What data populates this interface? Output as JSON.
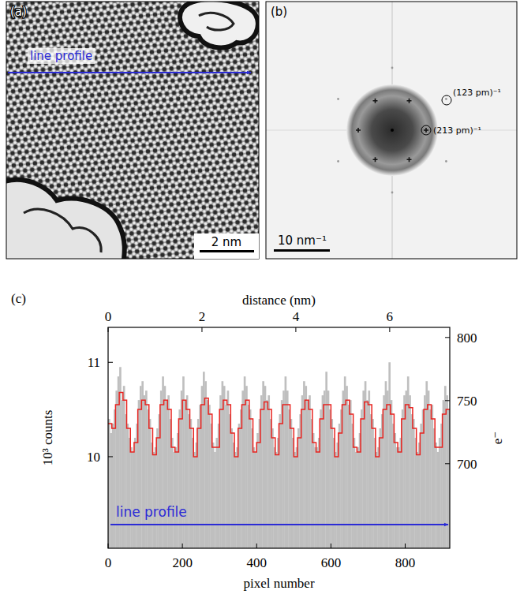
{
  "panel_a": {
    "label": "(a)",
    "annotation": "line profile",
    "scale_bar_label": "2 nm"
  },
  "panel_b": {
    "label": "(b)",
    "ring_labels": [
      "(123 pm)⁻¹",
      "(213 pm)⁻¹"
    ],
    "scale_bar_label": "10 nm⁻¹"
  },
  "chart_data": {
    "type": "bar",
    "panel_label": "(c)",
    "annotation": "line profile",
    "x_label": "pixel number",
    "x2_label": "distance (nm)",
    "y_label": "10³ counts",
    "y2_label": "e⁻",
    "xlim": [
      0,
      920
    ],
    "xticks": [
      0,
      200,
      400,
      600,
      800
    ],
    "x2lim": [
      0,
      7.28
    ],
    "x2ticks": [
      0,
      2,
      4,
      6
    ],
    "ylim": [
      9.03,
      11.37
    ],
    "yticks": [
      10,
      11
    ],
    "y2lim": [
      633,
      808
    ],
    "y2ticks": [
      700,
      750,
      800
    ],
    "grid": false,
    "series": [
      {
        "type": "bar",
        "color": "#bfbfbf",
        "x": [
          0,
          5,
          10,
          15,
          20,
          25,
          30,
          35,
          40,
          45,
          50,
          55,
          60,
          65,
          70,
          75,
          80,
          85,
          90,
          95,
          100,
          105,
          110,
          115,
          120,
          125,
          130,
          135,
          140,
          145,
          150,
          155,
          160,
          165,
          170,
          175,
          180,
          185,
          190,
          195,
          200,
          205,
          210,
          215,
          220,
          225,
          230,
          235,
          240,
          245,
          250,
          255,
          260,
          265,
          270,
          275,
          280,
          285,
          290,
          295,
          300,
          305,
          310,
          315,
          320,
          325,
          330,
          335,
          340,
          345,
          350,
          355,
          360,
          365,
          370,
          375,
          380,
          385,
          390,
          395,
          400,
          405,
          410,
          415,
          420,
          425,
          430,
          435,
          440,
          445,
          450,
          455,
          460,
          465,
          470,
          475,
          480,
          485,
          490,
          495,
          500,
          505,
          510,
          515,
          520,
          525,
          530,
          535,
          540,
          545,
          550,
          555,
          560,
          565,
          570,
          575,
          580,
          585,
          590,
          595,
          600,
          605,
          610,
          615,
          620,
          625,
          630,
          635,
          640,
          645,
          650,
          655,
          660,
          665,
          670,
          675,
          680,
          685,
          690,
          695,
          700,
          705,
          710,
          715,
          720,
          725,
          730,
          735,
          740,
          745,
          750,
          755,
          760,
          765,
          770,
          775,
          780,
          785,
          790,
          795,
          800,
          805,
          810,
          815,
          820,
          825,
          830,
          835,
          840,
          845,
          850,
          855,
          860,
          865,
          870,
          875,
          880,
          885,
          890,
          895,
          900,
          905,
          910,
          915
        ],
        "values": [
          10.4,
          10.25,
          10.35,
          10.5,
          10.7,
          10.85,
          10.95,
          10.6,
          10.75,
          10.45,
          10.35,
          10.2,
          10.1,
          10.05,
          10.2,
          10.35,
          10.6,
          10.75,
          10.8,
          10.65,
          10.7,
          10.5,
          10.4,
          10.15,
          10.05,
          10.1,
          10.3,
          10.45,
          10.7,
          10.85,
          10.75,
          10.6,
          10.65,
          10.4,
          10.2,
          10.05,
          10.1,
          10.25,
          10.5,
          10.7,
          10.85,
          10.6,
          10.65,
          10.45,
          10.4,
          10.2,
          10.05,
          10.15,
          10.4,
          10.55,
          10.75,
          10.9,
          10.8,
          10.6,
          10.55,
          10.35,
          10.15,
          10.05,
          10.2,
          10.35,
          10.65,
          10.8,
          10.75,
          10.55,
          10.7,
          10.45,
          10.3,
          10.15,
          10.05,
          10.1,
          10.35,
          10.5,
          10.7,
          10.85,
          10.75,
          10.55,
          10.5,
          10.3,
          10.1,
          10.05,
          10.25,
          10.4,
          10.65,
          10.8,
          10.75,
          10.6,
          10.65,
          10.4,
          10.3,
          10.1,
          10.05,
          10.2,
          10.45,
          10.6,
          10.7,
          10.85,
          10.7,
          10.5,
          10.4,
          10.2,
          10.05,
          10.1,
          10.3,
          10.45,
          10.65,
          10.8,
          10.75,
          10.6,
          10.65,
          10.4,
          10.25,
          10.1,
          10.1,
          10.2,
          10.5,
          10.65,
          10.7,
          10.9,
          10.7,
          10.5,
          10.4,
          10.2,
          10.05,
          10.15,
          10.35,
          10.5,
          10.7,
          10.85,
          10.75,
          10.55,
          10.6,
          10.35,
          10.2,
          10.05,
          10.1,
          10.25,
          10.5,
          10.7,
          10.8,
          10.6,
          10.7,
          10.45,
          10.4,
          10.2,
          10.05,
          10.1,
          10.3,
          10.45,
          10.65,
          10.8,
          10.7,
          11.0,
          10.6,
          10.35,
          10.25,
          10.1,
          10.1,
          10.2,
          10.5,
          10.65,
          10.7,
          10.85,
          10.65,
          10.45,
          10.4,
          10.2,
          10.05,
          10.15,
          10.35,
          10.5,
          10.65,
          10.8,
          10.7,
          10.5,
          10.55,
          10.3,
          10.15,
          10.05,
          10.2,
          10.35,
          10.6,
          10.75,
          10.65,
          10.5
        ]
      },
      {
        "type": "line",
        "line_style": "steps",
        "color": "#e8231f",
        "x": [
          0,
          10,
          20,
          30,
          40,
          50,
          60,
          70,
          80,
          90,
          100,
          110,
          120,
          130,
          140,
          150,
          160,
          170,
          180,
          190,
          200,
          210,
          220,
          230,
          240,
          250,
          260,
          270,
          280,
          290,
          300,
          310,
          320,
          330,
          340,
          350,
          360,
          370,
          380,
          390,
          400,
          410,
          420,
          430,
          440,
          450,
          460,
          470,
          480,
          490,
          500,
          510,
          520,
          530,
          540,
          550,
          560,
          570,
          580,
          590,
          600,
          610,
          620,
          630,
          640,
          650,
          660,
          670,
          680,
          690,
          700,
          710,
          720,
          730,
          740,
          750,
          760,
          770,
          780,
          790,
          800,
          810,
          820,
          830,
          840,
          850,
          860,
          870,
          880,
          890,
          900,
          910
        ],
        "values": [
          10.35,
          10.3,
          10.55,
          10.68,
          10.6,
          10.3,
          10.05,
          10.15,
          10.5,
          10.6,
          10.55,
          10.3,
          10.02,
          10.2,
          10.55,
          10.6,
          10.5,
          10.1,
          10.05,
          10.4,
          10.6,
          10.5,
          10.3,
          10.0,
          10.3,
          10.55,
          10.62,
          10.45,
          10.1,
          10.1,
          10.5,
          10.6,
          10.55,
          10.25,
          10.0,
          10.3,
          10.55,
          10.6,
          10.4,
          10.05,
          10.15,
          10.5,
          10.58,
          10.5,
          10.2,
          10.02,
          10.35,
          10.55,
          10.55,
          10.3,
          10.0,
          10.2,
          10.5,
          10.6,
          10.5,
          10.15,
          10.05,
          10.4,
          10.55,
          10.55,
          10.3,
          10.0,
          10.25,
          10.55,
          10.6,
          10.45,
          10.1,
          10.05,
          10.4,
          10.58,
          10.55,
          10.3,
          10.0,
          10.2,
          10.5,
          10.55,
          10.45,
          10.15,
          10.05,
          10.4,
          10.55,
          10.52,
          10.3,
          10.02,
          10.25,
          10.5,
          10.55,
          10.4,
          10.1,
          10.1,
          10.45,
          10.5
        ]
      }
    ]
  }
}
